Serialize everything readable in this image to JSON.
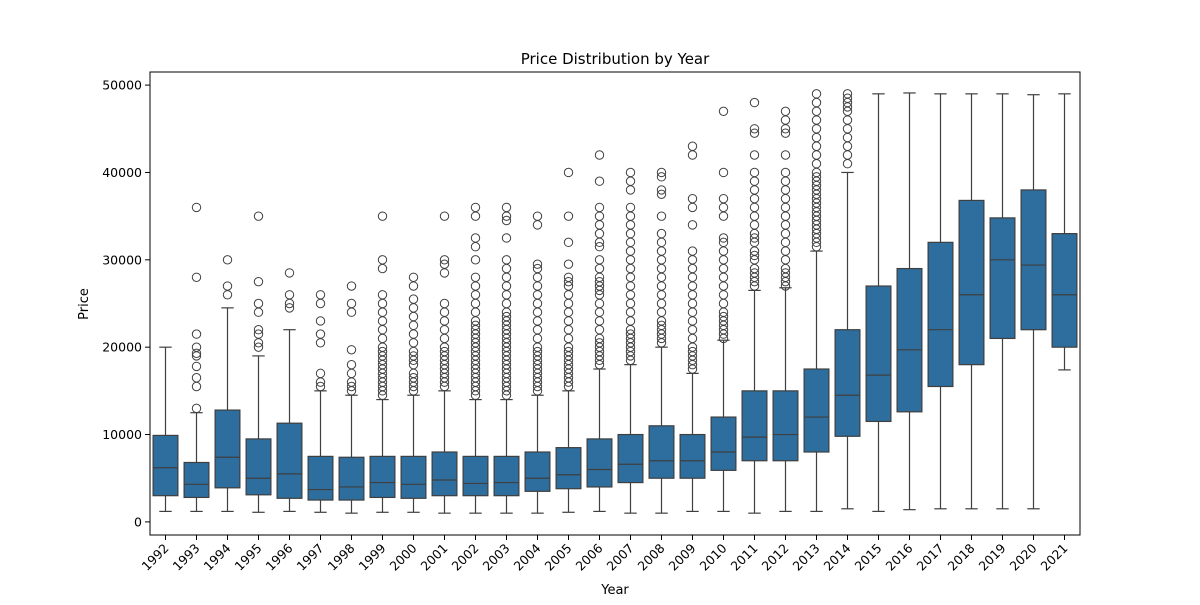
{
  "chart_data": {
    "type": "box",
    "title": "Price Distribution by Year",
    "xlabel": "Year",
    "ylabel": "Price",
    "ylim": [
      -1500,
      51500
    ],
    "yticks": [
      0,
      10000,
      20000,
      30000,
      40000,
      50000
    ],
    "grid": false,
    "legend": "none",
    "box_color": "#2e6e9e",
    "line_color": "#3f3f3f",
    "categories": [
      "1992",
      "1993",
      "1994",
      "1995",
      "1996",
      "1997",
      "1998",
      "1999",
      "2000",
      "2001",
      "2002",
      "2003",
      "2004",
      "2005",
      "2006",
      "2007",
      "2008",
      "2009",
      "2010",
      "2011",
      "2012",
      "2013",
      "2014",
      "2015",
      "2016",
      "2017",
      "2018",
      "2019",
      "2020",
      "2021"
    ],
    "boxes": [
      {
        "year": "1992",
        "whislo": 1200,
        "q1": 3000,
        "med": 6200,
        "q3": 9900,
        "whishi": 20000,
        "fliers": []
      },
      {
        "year": "1993",
        "whislo": 1200,
        "q1": 2800,
        "med": 4300,
        "q3": 6800,
        "whishi": 12500,
        "fliers": [
          13000,
          15500,
          16500,
          17800,
          19000,
          19300,
          20000,
          21500,
          28000,
          36000
        ]
      },
      {
        "year": "1994",
        "whislo": 1200,
        "q1": 3900,
        "med": 7400,
        "q3": 12800,
        "whishi": 24500,
        "fliers": [
          26000,
          27000,
          30000
        ]
      },
      {
        "year": "1995",
        "whislo": 1100,
        "q1": 3100,
        "med": 5000,
        "q3": 9500,
        "whishi": 19000,
        "fliers": [
          20000,
          20500,
          21500,
          22000,
          24000,
          25000,
          27500,
          35000
        ]
      },
      {
        "year": "1996",
        "whislo": 1200,
        "q1": 2700,
        "med": 5500,
        "q3": 11300,
        "whishi": 22000,
        "fliers": [
          24500,
          25000,
          26000,
          28500
        ]
      },
      {
        "year": "1997",
        "whislo": 1100,
        "q1": 2500,
        "med": 3700,
        "q3": 7500,
        "whishi": 15000,
        "fliers": [
          15500,
          16000,
          17000,
          20500,
          21500,
          23000,
          25000,
          26000
        ]
      },
      {
        "year": "1998",
        "whislo": 1000,
        "q1": 2500,
        "med": 4000,
        "q3": 7400,
        "whishi": 14500,
        "fliers": [
          15000,
          15500,
          16000,
          17000,
          18000,
          19700,
          24000,
          25000,
          27000
        ]
      },
      {
        "year": "1999",
        "whislo": 1100,
        "q1": 2800,
        "med": 4500,
        "q3": 7500,
        "whishi": 14000,
        "fliers": [
          14500,
          15000,
          15500,
          16000,
          16500,
          17000,
          17500,
          18000,
          18500,
          19000,
          19500,
          20000,
          21000,
          22000,
          23000,
          24000,
          25000,
          26000,
          29000,
          30000,
          35000
        ]
      },
      {
        "year": "2000",
        "whislo": 1100,
        "q1": 2700,
        "med": 4300,
        "q3": 7500,
        "whishi": 14500,
        "fliers": [
          15000,
          15500,
          16000,
          16500,
          17000,
          18000,
          18500,
          19000,
          19500,
          20500,
          21500,
          22500,
          23500,
          24500,
          25500,
          27000,
          28000
        ]
      },
      {
        "year": "2001",
        "whislo": 1000,
        "q1": 3000,
        "med": 4800,
        "q3": 8000,
        "whishi": 15000,
        "fliers": [
          15500,
          16000,
          16500,
          17000,
          17500,
          18000,
          18500,
          19000,
          19500,
          20000,
          21000,
          22000,
          23000,
          24000,
          25000,
          28500,
          29500,
          30000,
          35000
        ]
      },
      {
        "year": "2002",
        "whislo": 1000,
        "q1": 3000,
        "med": 4400,
        "q3": 7500,
        "whishi": 14000,
        "fliers": [
          14500,
          15000,
          15500,
          16000,
          16500,
          17000,
          17500,
          18000,
          18500,
          19000,
          19500,
          20000,
          20500,
          21000,
          21500,
          22000,
          22500,
          23000,
          24000,
          25000,
          26000,
          27000,
          28000,
          30000,
          31500,
          32500,
          35000,
          36000
        ]
      },
      {
        "year": "2003",
        "whislo": 1000,
        "q1": 3000,
        "med": 4500,
        "q3": 7500,
        "whishi": 14000,
        "fliers": [
          14500,
          15000,
          15500,
          16000,
          16500,
          17000,
          17500,
          18000,
          18500,
          19000,
          19500,
          20000,
          20500,
          21000,
          21500,
          22000,
          22500,
          23000,
          23500,
          24000,
          25000,
          26000,
          27000,
          28000,
          29000,
          30000,
          32500,
          34500,
          35000,
          36000
        ]
      },
      {
        "year": "2004",
        "whislo": 1000,
        "q1": 3500,
        "med": 5000,
        "q3": 8000,
        "whishi": 14500,
        "fliers": [
          15000,
          15500,
          16000,
          16500,
          17000,
          17500,
          18000,
          18500,
          19000,
          19500,
          20000,
          21000,
          22000,
          23000,
          24000,
          25000,
          26000,
          27000,
          28000,
          29000,
          29500,
          34000,
          35000
        ]
      },
      {
        "year": "2005",
        "whislo": 1100,
        "q1": 3800,
        "med": 5400,
        "q3": 8500,
        "whishi": 15000,
        "fliers": [
          15500,
          16000,
          16500,
          17000,
          17500,
          18000,
          18500,
          19000,
          19500,
          20000,
          21000,
          22000,
          23000,
          24000,
          25000,
          26000,
          27000,
          27500,
          28000,
          29500,
          32000,
          35000,
          40000
        ]
      },
      {
        "year": "2006",
        "whislo": 1200,
        "q1": 4000,
        "med": 6000,
        "q3": 9500,
        "whishi": 17500,
        "fliers": [
          18000,
          18500,
          19000,
          19500,
          20000,
          20500,
          21000,
          22000,
          23000,
          24000,
          25000,
          26000,
          26500,
          27000,
          27500,
          28000,
          29000,
          30000,
          31500,
          32000,
          33000,
          34000,
          35000,
          36000,
          39000,
          42000
        ]
      },
      {
        "year": "2007",
        "whislo": 1000,
        "q1": 4500,
        "med": 6600,
        "q3": 10000,
        "whishi": 18000,
        "fliers": [
          18500,
          19000,
          19500,
          20000,
          20500,
          21000,
          21500,
          22000,
          23000,
          24000,
          25000,
          26000,
          27000,
          28000,
          29000,
          30000,
          31000,
          32000,
          33000,
          34000,
          35000,
          36000,
          38000,
          39000,
          40000
        ]
      },
      {
        "year": "2008",
        "whislo": 1000,
        "q1": 5000,
        "med": 7000,
        "q3": 11000,
        "whishi": 20000,
        "fliers": [
          20500,
          21000,
          21500,
          22000,
          22500,
          23000,
          24000,
          25000,
          26000,
          27000,
          28000,
          29000,
          30000,
          31000,
          32000,
          33000,
          35000,
          37500,
          38000,
          39500,
          40000
        ]
      },
      {
        "year": "2009",
        "whislo": 1200,
        "q1": 5000,
        "med": 7000,
        "q3": 10000,
        "whishi": 17000,
        "fliers": [
          17500,
          18000,
          18500,
          19000,
          19500,
          20000,
          21000,
          22000,
          23000,
          24000,
          25000,
          26000,
          27000,
          28000,
          29000,
          30000,
          31000,
          34000,
          36000,
          37000,
          42000,
          43000
        ]
      },
      {
        "year": "2010",
        "whislo": 1200,
        "q1": 5900,
        "med": 8000,
        "q3": 12000,
        "whishi": 20800,
        "fliers": [
          21000,
          21500,
          22000,
          22500,
          23000,
          23500,
          24000,
          25000,
          26000,
          27000,
          28000,
          29000,
          30000,
          31000,
          32000,
          32500,
          35000,
          36000,
          37000,
          40000,
          47000
        ]
      },
      {
        "year": "2011",
        "whislo": 1000,
        "q1": 7000,
        "med": 9700,
        "q3": 15000,
        "whishi": 26500,
        "fliers": [
          27000,
          27500,
          28000,
          28500,
          29000,
          30000,
          30500,
          31000,
          32000,
          32500,
          33000,
          34000,
          35000,
          36000,
          37000,
          38000,
          39000,
          40000,
          42000,
          44500,
          45000,
          48000
        ]
      },
      {
        "year": "2012",
        "whislo": 1200,
        "q1": 7000,
        "med": 10000,
        "q3": 15000,
        "whishi": 26800,
        "fliers": [
          27000,
          27500,
          28000,
          28500,
          29000,
          30000,
          31000,
          32000,
          33000,
          34000,
          35000,
          36000,
          37000,
          38000,
          39000,
          40000,
          42000,
          44500,
          45000,
          46000,
          47000
        ]
      },
      {
        "year": "2013",
        "whislo": 1200,
        "q1": 8000,
        "med": 12000,
        "q3": 17500,
        "whishi": 31000,
        "fliers": [
          31500,
          32000,
          32500,
          33000,
          33500,
          34000,
          34500,
          35000,
          35500,
          36000,
          36500,
          37000,
          37500,
          38000,
          38500,
          39000,
          39500,
          40000,
          41000,
          42000,
          43000,
          44000,
          45000,
          46000,
          47000,
          48000,
          49000
        ]
      },
      {
        "year": "2014",
        "whislo": 1500,
        "q1": 9800,
        "med": 14500,
        "q3": 22000,
        "whishi": 40000,
        "fliers": [
          41000,
          42000,
          43000,
          44000,
          45000,
          46000,
          47000,
          47500,
          48000,
          48500,
          49000
        ]
      },
      {
        "year": "2015",
        "whislo": 1200,
        "q1": 11500,
        "med": 16800,
        "q3": 27000,
        "whishi": 49000,
        "fliers": []
      },
      {
        "year": "2016",
        "whislo": 1400,
        "q1": 12600,
        "med": 19700,
        "q3": 29000,
        "whishi": 49100,
        "fliers": []
      },
      {
        "year": "2017",
        "whislo": 1500,
        "q1": 15500,
        "med": 22000,
        "q3": 32000,
        "whishi": 49000,
        "fliers": []
      },
      {
        "year": "2018",
        "whislo": 1500,
        "q1": 18000,
        "med": 26000,
        "q3": 36800,
        "whishi": 49000,
        "fliers": []
      },
      {
        "year": "2019",
        "whislo": 1500,
        "q1": 21000,
        "med": 30000,
        "q3": 34800,
        "whishi": 49000,
        "fliers": []
      },
      {
        "year": "2020",
        "whislo": 1500,
        "q1": 22000,
        "med": 29400,
        "q3": 38000,
        "whishi": 48900,
        "fliers": []
      },
      {
        "year": "2021",
        "whislo": 17400,
        "q1": 20000,
        "med": 26000,
        "q3": 33000,
        "whishi": 49000,
        "fliers": []
      }
    ]
  }
}
